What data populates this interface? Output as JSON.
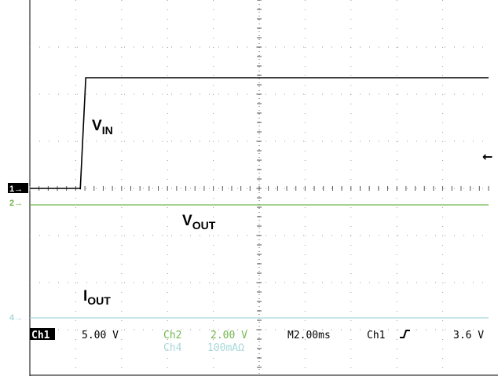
{
  "chart_data": {
    "type": "line",
    "grid": true,
    "divisions": {
      "horizontal": 10,
      "vertical": 8
    },
    "channel_markers": [
      {
        "label": "1→",
        "channel": "Ch1"
      },
      {
        "label": "2→",
        "channel": "Ch2"
      },
      {
        "label": "4→",
        "channel": "Ch4"
      }
    ],
    "series": [
      {
        "name": "VIN",
        "label": {
          "main": "V",
          "sub": "IN"
        },
        "channel": "Ch1",
        "color": "#000000",
        "x_div": [
          0,
          1.1,
          1.1,
          1.22,
          10
        ],
        "y_div": [
          0,
          0,
          -0.02,
          2.35,
          2.35
        ]
      },
      {
        "name": "VOUT",
        "label": {
          "main": "V",
          "sub": "OUT"
        },
        "channel": "Ch2",
        "color": "#72b84e",
        "x_div": [
          0,
          10
        ],
        "y_div": [
          0,
          0
        ]
      },
      {
        "name": "IOUT",
        "label": {
          "main": "I",
          "sub": "OUT"
        },
        "channel": "Ch4",
        "color": "#a9d8da",
        "x_div": [
          0,
          10
        ],
        "y_div": [
          0,
          0
        ]
      }
    ],
    "trigger_arrow": "←",
    "settings": {
      "ch1_tag": "Ch1",
      "ch1_scale": "5.00 V",
      "ch2_tag": "Ch2",
      "ch2_scale": "2.00 V",
      "ch4_tag": "Ch4",
      "ch4_scale": "100mAΩ",
      "timebase": "M2.00ms",
      "trigger_source": "Ch1",
      "trigger_slope_icon": "rising-edge-icon",
      "trigger_level": "3.6 V"
    }
  }
}
